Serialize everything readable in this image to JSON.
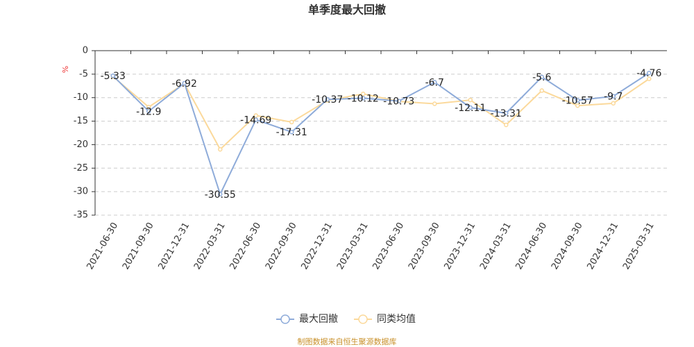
{
  "chart_data": {
    "type": "line",
    "title": "单季度最大回撤",
    "y_label": "%",
    "categories": [
      "2021-06-30",
      "2021-09-30",
      "2021-12-31",
      "2022-03-31",
      "2022-06-30",
      "2022-09-30",
      "2022-12-31",
      "2023-03-31",
      "2023-06-30",
      "2023-09-30",
      "2023-12-31",
      "2024-03-31",
      "2024-06-30",
      "2024-09-30",
      "2024-12-31",
      "2025-03-31"
    ],
    "series": [
      {
        "name": "最大回撤",
        "color": "#8eabd9",
        "values": [
          -5.33,
          -12.9,
          -6.92,
          -30.55,
          -14.69,
          -17.31,
          -10.37,
          -10.12,
          -10.73,
          -6.7,
          -12.11,
          -13.31,
          -5.6,
          -10.57,
          -9.7,
          -4.76
        ],
        "show_labels": true
      },
      {
        "name": "同类均值",
        "color": "#fbd99b",
        "values": [
          -5.5,
          -12,
          -7,
          -21,
          -13.8,
          -15.2,
          -10.6,
          -9.2,
          -10.8,
          -11.3,
          -10.5,
          -15.8,
          -8.5,
          -11.7,
          -11.2,
          -6
        ],
        "show_labels": false
      }
    ],
    "ylim": [
      -35,
      0
    ],
    "yticks": [
      0,
      -5,
      -10,
      -15,
      -20,
      -25,
      -30,
      -35
    ],
    "grid": true,
    "source": "制图数据来自恒生聚源数据库"
  }
}
